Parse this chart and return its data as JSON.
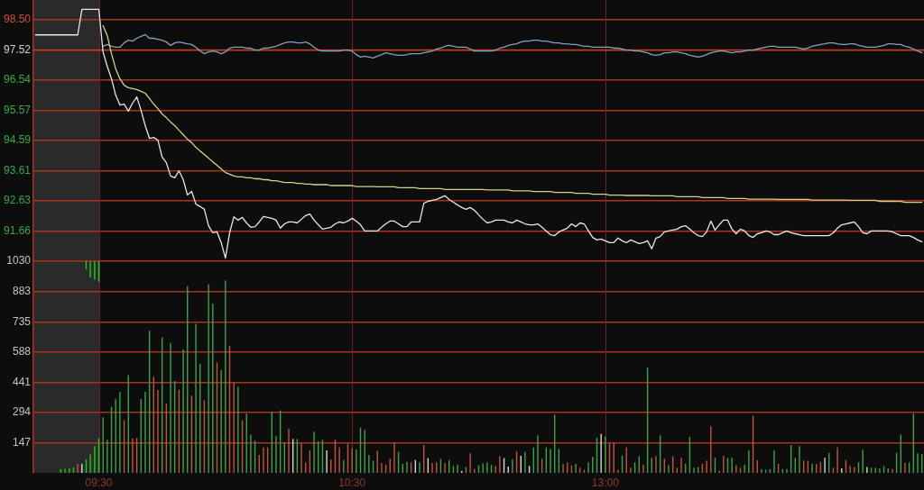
{
  "chart_data": [
    {
      "type": "line",
      "categories": [
        null,
        null,
        null,
        null,
        null,
        null,
        null,
        null,
        null,
        null,
        null,
        null,
        null,
        null,
        null,
        null,
        null,
        null,
        null,
        null,
        null,
        null,
        null,
        null,
        null,
        null,
        null,
        null,
        null,
        null,
        null,
        null,
        null,
        null,
        null,
        null,
        null,
        null,
        null,
        null,
        null,
        null,
        null,
        null,
        null,
        null,
        null,
        null,
        null,
        null,
        null,
        null,
        null,
        null,
        null,
        null,
        null,
        null,
        null,
        null,
        null,
        null,
        null,
        null,
        null,
        null,
        null,
        null,
        null,
        null,
        null,
        null,
        null,
        null,
        null,
        null,
        null,
        null,
        null,
        null,
        null,
        null,
        null,
        null,
        null,
        null,
        null,
        null,
        null,
        null,
        null,
        null,
        null,
        null,
        null,
        null,
        null,
        null,
        null,
        null,
        null,
        null,
        null,
        null,
        null,
        null,
        null,
        null,
        null,
        null,
        null,
        null,
        null,
        null,
        null,
        null,
        null,
        null,
        null,
        null,
        null,
        null,
        null,
        null,
        null,
        null,
        null,
        null,
        null,
        null,
        null,
        null,
        null,
        null,
        null,
        null,
        null,
        null,
        null,
        null,
        null,
        null,
        null,
        null,
        null,
        null,
        null,
        null,
        null,
        null,
        null,
        null,
        null,
        null,
        null,
        null,
        null,
        null,
        null,
        null,
        null,
        null,
        null,
        null,
        null,
        null,
        null,
        null,
        null,
        null,
        null,
        null,
        null,
        null,
        null,
        null,
        null,
        null,
        null,
        null,
        null,
        null,
        null,
        null,
        null,
        null,
        null,
        null,
        null,
        null,
        null,
        null,
        null,
        null,
        null,
        null,
        null,
        null,
        null,
        null,
        null,
        null,
        null,
        null,
        null,
        null,
        null,
        null,
        null,
        null,
        null
      ],
      "series": [
        {
          "color": "#e8e8e8",
          "values": [
            98.01,
            98.01,
            98.01,
            98.01,
            98.01,
            98.01,
            98.01,
            98.01,
            98.01,
            98.01,
            98.01,
            98.84,
            98.84,
            98.84,
            98.84,
            98.84,
            97.46,
            96.99,
            96.59,
            96.06,
            95.74,
            95.77,
            95.54,
            95.8,
            96.0,
            95.57,
            95.07,
            94.66,
            94.69,
            94.6,
            94.05,
            93.87,
            93.44,
            93.38,
            93.61,
            93.32,
            92.83,
            92.94,
            92.53,
            92.45,
            92.36,
            91.83,
            91.6,
            91.63,
            91.28,
            90.78,
            91.6,
            92.12,
            92.01,
            92.1,
            91.92,
            91.78,
            91.8,
            91.95,
            92.13,
            92.1,
            92.07,
            92.01,
            91.75,
            91.89,
            91.95,
            91.95,
            91.92,
            92.04,
            92.16,
            92.21,
            92.01,
            91.86,
            91.72,
            91.75,
            91.78,
            91.89,
            91.95,
            91.92,
            91.98,
            92.07,
            91.98,
            91.86,
            91.66,
            91.66,
            91.66,
            91.66,
            91.78,
            91.89,
            91.98,
            91.98,
            91.89,
            91.8,
            91.8,
            91.95,
            91.95,
            91.95,
            92.56,
            92.62,
            92.65,
            92.68,
            92.74,
            92.8,
            92.68,
            92.59,
            92.5,
            92.42,
            92.36,
            92.42,
            92.33,
            92.18,
            92.04,
            91.92,
            91.95,
            92.01,
            92.01,
            92.01,
            91.95,
            91.92,
            92.01,
            91.95,
            91.89,
            91.86,
            91.86,
            91.89,
            91.78,
            91.66,
            91.54,
            91.51,
            91.63,
            91.69,
            91.75,
            91.89,
            91.8,
            91.92,
            91.89,
            91.66,
            91.45,
            91.37,
            91.4,
            91.34,
            91.28,
            91.28,
            91.43,
            91.34,
            91.28,
            91.37,
            91.31,
            91.25,
            91.28,
            91.34,
            91.08,
            91.43,
            91.48,
            91.63,
            91.66,
            91.69,
            91.72,
            91.8,
            91.83,
            91.72,
            91.6,
            91.51,
            91.48,
            91.63,
            91.98,
            91.69,
            91.86,
            92.01,
            92.01,
            91.72,
            91.57,
            91.72,
            91.66,
            91.51,
            91.45,
            91.57,
            91.6,
            91.66,
            91.63,
            91.54,
            91.54,
            91.6,
            91.66,
            91.6,
            91.57,
            91.54,
            91.51,
            91.51,
            91.51,
            91.51,
            91.51,
            91.51,
            91.51,
            91.6,
            91.75,
            91.86,
            91.89,
            91.92,
            91.95,
            91.8,
            91.6,
            91.57,
            91.66,
            91.66,
            91.66,
            91.66,
            91.66,
            91.63,
            91.57,
            91.51,
            91.51,
            91.51,
            91.45,
            91.37,
            91.31
          ]
        },
        {
          "color": "#d8d08a",
          "values": [
            null,
            null,
            null,
            null,
            null,
            null,
            null,
            null,
            null,
            null,
            null,
            null,
            null,
            null,
            null,
            null,
            98.31,
            97.99,
            97.4,
            96.91,
            96.59,
            96.38,
            96.3,
            96.27,
            96.24,
            96.18,
            96.12,
            95.95,
            95.77,
            95.62,
            95.45,
            95.33,
            95.19,
            95.07,
            94.92,
            94.78,
            94.63,
            94.52,
            94.37,
            94.25,
            94.14,
            94.02,
            93.9,
            93.79,
            93.67,
            93.55,
            93.5,
            93.44,
            93.41,
            93.41,
            93.38,
            93.38,
            93.35,
            93.35,
            93.32,
            93.32,
            93.29,
            93.29,
            93.26,
            93.23,
            93.23,
            93.23,
            93.2,
            93.2,
            93.18,
            93.18,
            93.16,
            93.16,
            93.16,
            93.16,
            93.13,
            93.13,
            93.13,
            93.13,
            93.13,
            93.13,
            93.1,
            93.1,
            93.1,
            93.1,
            93.1,
            93.09,
            93.09,
            93.09,
            93.09,
            93.09,
            93.06,
            93.06,
            93.06,
            93.06,
            93.06,
            93.03,
            93.03,
            93.03,
            93.03,
            93.03,
            93.03,
            93.0,
            93.0,
            93.0,
            93.0,
            93.0,
            93.0,
            93.0,
            93.0,
            93.0,
            93.0,
            92.99,
            92.99,
            92.99,
            92.99,
            92.99,
            92.99,
            92.96,
            92.96,
            92.96,
            92.96,
            92.96,
            92.94,
            92.94,
            92.94,
            92.94,
            92.94,
            92.91,
            92.91,
            92.91,
            92.91,
            92.91,
            92.88,
            92.88,
            92.88,
            92.88,
            92.85,
            92.85,
            92.85,
            92.85,
            92.82,
            92.82,
            92.82,
            92.82,
            92.81,
            92.81,
            92.81,
            92.81,
            92.81,
            92.81,
            92.8,
            92.8,
            92.8,
            92.8,
            92.8,
            92.8,
            92.77,
            92.77,
            92.77,
            92.77,
            92.77,
            92.77,
            92.74,
            92.74,
            92.74,
            92.74,
            92.74,
            92.74,
            92.71,
            92.71,
            92.71,
            92.71,
            92.71,
            92.69,
            92.69,
            92.69,
            92.69,
            92.69,
            92.69,
            92.69,
            92.68,
            92.68,
            92.68,
            92.68,
            92.68,
            92.68,
            92.68,
            92.68,
            92.66,
            92.66,
            92.66,
            92.66,
            92.66,
            92.66,
            92.66,
            92.66,
            92.66,
            92.65,
            92.65,
            92.65,
            92.65,
            92.65,
            92.65,
            92.65,
            92.62,
            92.62,
            92.62,
            92.62,
            92.62,
            92.62,
            92.59,
            92.59,
            92.59,
            92.59,
            92.59
          ]
        },
        {
          "color": "#7fa3bf",
          "values": [
            null,
            null,
            null,
            null,
            null,
            null,
            null,
            null,
            null,
            null,
            null,
            null,
            null,
            null,
            null,
            null,
            97.64,
            97.7,
            97.64,
            97.61,
            97.61,
            97.75,
            97.84,
            97.81,
            97.9,
            97.96,
            98.02,
            97.9,
            97.9,
            97.87,
            97.84,
            97.78,
            97.67,
            97.75,
            97.78,
            97.75,
            97.72,
            97.7,
            97.61,
            97.49,
            97.4,
            97.46,
            97.49,
            97.46,
            97.4,
            97.46,
            97.58,
            97.61,
            97.61,
            97.61,
            97.58,
            97.58,
            97.52,
            97.52,
            97.58,
            97.58,
            97.61,
            97.64,
            97.7,
            97.75,
            97.78,
            97.78,
            97.75,
            97.75,
            97.78,
            97.72,
            97.61,
            97.52,
            97.49,
            97.49,
            97.49,
            97.49,
            97.49,
            97.52,
            97.52,
            97.49,
            97.37,
            97.29,
            97.32,
            97.29,
            97.26,
            97.32,
            97.37,
            97.43,
            97.4,
            97.37,
            97.35,
            97.35,
            97.37,
            97.4,
            97.4,
            97.4,
            97.43,
            97.46,
            97.49,
            97.55,
            97.58,
            97.64,
            97.67,
            97.64,
            97.61,
            97.61,
            97.61,
            97.55,
            97.49,
            97.49,
            97.49,
            97.49,
            97.49,
            97.52,
            97.58,
            97.61,
            97.67,
            97.7,
            97.72,
            97.78,
            97.81,
            97.81,
            97.84,
            97.84,
            97.81,
            97.81,
            97.78,
            97.75,
            97.75,
            97.72,
            97.72,
            97.7,
            97.7,
            97.67,
            97.64,
            97.64,
            97.61,
            97.61,
            97.61,
            97.61,
            97.61,
            97.58,
            97.58,
            97.55,
            97.52,
            97.52,
            97.49,
            97.49,
            97.46,
            97.43,
            97.37,
            97.35,
            97.37,
            97.43,
            97.43,
            97.46,
            97.46,
            97.43,
            97.4,
            97.35,
            97.32,
            97.29,
            97.32,
            97.37,
            97.43,
            97.46,
            97.49,
            97.49,
            97.46,
            97.43,
            97.46,
            97.46,
            97.49,
            97.52,
            97.52,
            97.55,
            97.58,
            97.61,
            97.64,
            97.64,
            97.61,
            97.61,
            97.61,
            97.61,
            97.61,
            97.58,
            97.55,
            97.58,
            97.64,
            97.67,
            97.7,
            97.72,
            97.75,
            97.75,
            97.72,
            97.7,
            97.7,
            97.72,
            97.72,
            97.67,
            97.64,
            97.61,
            97.61,
            97.61,
            97.64,
            97.67,
            97.72,
            97.72,
            97.7,
            97.7,
            97.64,
            97.61,
            97.55,
            97.49,
            97.43
          ]
        }
      ],
      "ylim": [
        90.68,
        99.14
      ],
      "yticks": [
        91.66,
        92.63,
        93.61,
        94.59,
        95.57,
        96.54,
        97.52,
        {
          "value": 98.5,
          "label": "98.50"
        }
      ],
      "grid": true,
      "tick_labels": "y",
      "ref_lines": [
        {
          "axis": "y",
          "value": 97.52,
          "color": "#c03c22"
        }
      ]
    },
    {
      "type": "bar",
      "categories": [
        null,
        null,
        null,
        null,
        null,
        null,
        null,
        null,
        null,
        null,
        null,
        null,
        null,
        null,
        null,
        "09:30",
        null,
        null,
        null,
        null,
        null,
        null,
        null,
        null,
        null,
        null,
        null,
        null,
        null,
        null,
        null,
        null,
        null,
        null,
        null,
        null,
        null,
        null,
        null,
        null,
        null,
        null,
        null,
        null,
        null,
        null,
        null,
        null,
        null,
        null,
        null,
        null,
        null,
        null,
        null,
        null,
        null,
        null,
        null,
        null,
        null,
        null,
        null,
        null,
        null,
        null,
        null,
        null,
        null,
        null,
        null,
        null,
        null,
        null,
        null,
        "10:30",
        null,
        null,
        null,
        null,
        null,
        null,
        null,
        null,
        null,
        null,
        null,
        null,
        null,
        null,
        null,
        null,
        null,
        null,
        null,
        null,
        null,
        null,
        null,
        null,
        null,
        null,
        null,
        null,
        null,
        null,
        null,
        null,
        null,
        null,
        null,
        null,
        null,
        null,
        null,
        null,
        null,
        null,
        null,
        null,
        null,
        null,
        null,
        null,
        null,
        null,
        null,
        null,
        null,
        null,
        null,
        null,
        null,
        null,
        null,
        "13:00",
        null,
        null,
        null,
        null,
        null,
        null,
        null,
        null,
        null,
        null,
        null,
        null,
        null,
        null,
        null,
        null,
        null,
        null,
        null,
        null,
        null,
        null,
        null,
        null,
        null,
        null,
        null,
        null,
        null,
        null,
        null,
        null,
        null,
        null,
        null,
        null,
        null,
        null,
        null,
        null,
        null,
        null,
        null,
        null,
        null,
        null,
        null,
        null,
        null,
        null,
        null,
        null,
        null,
        null,
        null,
        null,
        null,
        null,
        null,
        null,
        null,
        null,
        null,
        null,
        null,
        null,
        null,
        null,
        null,
        null,
        null,
        null,
        null,
        null,
        null
      ],
      "series": [
        {
          "values": [
            null,
            null,
            null,
            null,
            null,
            null,
            18,
            20,
            22,
            26,
            44,
            44,
            66,
            90,
            130,
            168,
            271,
            161,
            322,
            359,
            395,
            256,
            476,
            168,
            170,
            359,
            395,
            692,
            468,
            403,
            659,
            337,
            632,
            447,
            405,
            600,
            908,
            376,
            725,
            530,
            354,
            918,
            824,
            537,
            501,
            937,
            619,
            439,
            420,
            256,
            288,
            186,
            157,
            88,
            124,
            124,
            297,
            179,
            304,
            148,
            215,
            165,
            165,
            145,
            51,
            110,
            200,
            154,
            161,
            110,
            66,
            161,
            124,
            63,
            142,
            122,
            113,
            220,
            209,
            88,
            59,
            107,
            48,
            40,
            69,
            146,
            102,
            44,
            54,
            51,
            63,
            51,
            136,
            72,
            48,
            51,
            69,
            48,
            63,
            34,
            40,
            10,
            28,
            95,
            19,
            37,
            47,
            51,
            40,
            34,
            81,
            72,
            31,
            66,
            104,
            83,
            102,
            34,
            124,
            183,
            69,
            124,
            117,
            283,
            117,
            44,
            51,
            37,
            44,
            25,
            15,
            51,
            78,
            171,
            190,
            176,
            146,
            146,
            15,
            83,
            124,
            25,
            51,
            81,
            40,
            512,
            73,
            81,
            183,
            69,
            37,
            81,
            25,
            73,
            44,
            176,
            25,
            29,
            44,
            59,
            227,
            73,
            10,
            83,
            73,
            73,
            37,
            25,
            40,
            110,
            278,
            63,
            19,
            15,
            19,
            110,
            44,
            19,
            19,
            136,
            73,
            130,
            59,
            59,
            44,
            44,
            54,
            73,
            98,
            25,
            124,
            22,
            63,
            34,
            29,
            51,
            113,
            29,
            25,
            25,
            22,
            34,
            22,
            19,
            98,
            186,
            48,
            51,
            288,
            95,
            92
          ],
          "colors": [
            null,
            null,
            null,
            null,
            null,
            null,
            "#1ec81e",
            "#1ec81e",
            "#1ec81e",
            "#1ec81e",
            "#c4543c",
            "#d8d8d8",
            "#1ec81e",
            "#1ec81e",
            "#1ec81e",
            "#1ec81e",
            "#3ba34b",
            "#3ba34b",
            "#3ba34b",
            "#3ba34b",
            "#3ba34b",
            "#c4543c",
            "#3ba34b",
            "#c4543c",
            "#c4543c",
            "#3ba34b",
            "#3ba34b",
            "#3ba34b",
            "#c4543c",
            "#c4543c",
            "#3ba34b",
            "#c4543c",
            "#3ba34b",
            "#3ba34b",
            "#c4543c",
            "#3ba34b",
            "#3ba34b",
            "#c4543c",
            "#3ba34b",
            "#3ba34b",
            "#c4543c",
            "#3ba34b",
            "#3ba34b",
            "#c4543c",
            "#3ba34b",
            "#3ba34b",
            "#c4543c",
            "#c4543c",
            "#3ba34b",
            "#c4543c",
            "#3ba34b",
            "#3ba34b",
            "#3ba34b",
            "#c4543c",
            "#c4543c",
            "#c4543c",
            "#3ba34b",
            "#3ba34b",
            "#3ba34b",
            "#3ba34b",
            "#c4543c",
            "#d8d8d8",
            "#3ba34b",
            "#c4543c",
            "#c4543c",
            "#c4543c",
            "#3ba34b",
            "#3ba34b",
            "#3ba34b",
            "#d8d8d8",
            "#c4543c",
            "#c4543c",
            "#c4543c",
            "#3ba34b",
            "#c4543c",
            "#c4543c",
            "#3ba34b",
            "#3ba34b",
            "#3ba34b",
            "#3ba34b",
            "#3ba34b",
            "#c4543c",
            "#c4543c",
            "#c4543c",
            "#c4543c",
            "#c4543c",
            "#3ba34b",
            "#3ba34b",
            "#3ba34b",
            "#c4543c",
            "#d8d8d8",
            "#3ba34b",
            "#c4543c",
            "#d8d8d8",
            "#c4543c",
            "#c4543c",
            "#3ba34b",
            "#c4543c",
            "#3ba34b",
            "#3ba34b",
            "#3ba34b",
            "#d8d8d8",
            "#3ba34b",
            "#c4543c",
            "#c4543c",
            "#3ba34b",
            "#3ba34b",
            "#3ba34b",
            "#3ba34b",
            "#c4543c",
            "#c4543c",
            "#d8d8d8",
            "#d8d8d8",
            "#3ba34b",
            "#c4543c",
            "#d8d8d8",
            "#3ba34b",
            "#d8d8d8",
            "#3ba34b",
            "#3ba34b",
            "#c4543c",
            "#3ba34b",
            "#3ba34b",
            "#3ba34b",
            "#3ba34b",
            "#c4543c",
            "#c4543c",
            "#c4543c",
            "#3ba34b",
            "#c4543c",
            "#c4543c",
            "#3ba34b",
            "#3ba34b",
            "#3ba34b",
            "#d8d8d8",
            "#3ba34b",
            "#c4543c",
            "#c4543c",
            "#c4543c",
            "#3ba34b",
            "#c4543c",
            "#c4543c",
            "#3ba34b",
            "#3ba34b",
            "#c4543c",
            "#3ba34b",
            "#3ba34b",
            "#c4543c",
            "#3ba34b",
            "#c4543c",
            "#3ba34b",
            "#c4543c",
            "#c4543c",
            "#c4543c",
            "#3ba34b",
            "#3ba34b",
            "#3ba34b",
            "#3ba34b",
            "#c4543c",
            "#c4543c",
            "#c4543c",
            "#3ba34b",
            "#c4543c",
            "#c4543c",
            "#3ba34b",
            "#3ba34b",
            "#c4543c",
            "#c4543c",
            "#3ba34b",
            "#3ba34b",
            "#c4543c",
            "#c4543c",
            "#3ba34b",
            "#3ba34b",
            "#3ba34b",
            "#3ba34b",
            "#c4543c",
            "#3ba34b",
            "#3ba34b",
            "#3ba34b",
            "#3ba34b",
            "#3ba34b",
            "#c4543c",
            "#c4543c",
            "#3ba34b",
            "#c4543c",
            "#c4543c",
            "#d8d8d8",
            "#3ba34b",
            "#c4543c",
            "#c4543c",
            "#d8d8d8",
            "#c4543c",
            "#c4543c",
            "#c4543c",
            "#3ba34b",
            "#3ba34b",
            "#d8d8d8",
            "#3ba34b",
            "#3ba34b",
            "#3ba34b",
            "#3ba34b",
            "#3ba34b",
            "#c4543c",
            "#3ba34b",
            "#3ba34b",
            "#c4543c",
            "#3ba34b",
            "#3ba34b",
            "#3ba34b",
            "#3ba34b"
          ]
        },
        {
          "color": "#1ec81e",
          "values": [
            null,
            null,
            null,
            null,
            null,
            null,
            null,
            null,
            null,
            null,
            null,
            null,
            -40,
            -80,
            -90,
            -100,
            null,
            null,
            null,
            null,
            null,
            null,
            null,
            null,
            null,
            null,
            null,
            null,
            null,
            null,
            null,
            null,
            null,
            null,
            null,
            null,
            null,
            null,
            null,
            null,
            null,
            null,
            null,
            null,
            null,
            null,
            null,
            null,
            null,
            null,
            null,
            null,
            null,
            null,
            null,
            null,
            null,
            null,
            null,
            null,
            null,
            null,
            null,
            null,
            null,
            null,
            null,
            null,
            null,
            null,
            null,
            null,
            null,
            null,
            null,
            null,
            null,
            null,
            null,
            null,
            null,
            null,
            null,
            null,
            null,
            null,
            null,
            null,
            null,
            null,
            null,
            null,
            null,
            null,
            null,
            null,
            null,
            null,
            null,
            null,
            null,
            null,
            null,
            null,
            null,
            null,
            null,
            null,
            null,
            null,
            null,
            null,
            null,
            null,
            null,
            null,
            null,
            null,
            null,
            null,
            null,
            null,
            null,
            null,
            null,
            null,
            null,
            null,
            null,
            null,
            null,
            null,
            null,
            null,
            null,
            null,
            null,
            null,
            null,
            null,
            null,
            null,
            null,
            null,
            null,
            null,
            null,
            null,
            null,
            null,
            null,
            null,
            null,
            null,
            null,
            null,
            null,
            null,
            null,
            null,
            null,
            null,
            null,
            null,
            null,
            null,
            null,
            null,
            null,
            null,
            null,
            null,
            null,
            null,
            null,
            null,
            null,
            null,
            null,
            null,
            null,
            null,
            null,
            null,
            null,
            null,
            null,
            null,
            null,
            null,
            null,
            null,
            null,
            null,
            null,
            null,
            null,
            null,
            null,
            null,
            null,
            null,
            null,
            null,
            null,
            null,
            null,
            null,
            null,
            null,
            null
          ],
          "base": [
            null,
            null,
            null,
            null,
            null,
            null,
            null,
            null,
            null,
            null,
            null,
            null,
            1030,
            1030,
            1030,
            1030,
            null,
            null,
            null,
            null,
            null,
            null,
            null,
            null,
            null,
            null,
            null,
            null,
            null,
            null,
            null,
            null,
            null,
            null,
            null,
            null,
            null,
            null,
            null,
            null,
            null,
            null,
            null,
            null,
            null,
            null,
            null,
            null,
            null,
            null,
            null,
            null,
            null,
            null,
            null,
            null,
            null,
            null,
            null,
            null,
            null,
            null,
            null,
            null,
            null,
            null,
            null,
            null,
            null,
            null,
            null,
            null,
            null,
            null,
            null,
            null,
            null,
            null,
            null,
            null,
            null,
            null,
            null,
            null,
            null,
            null,
            null,
            null,
            null,
            null,
            null,
            null,
            null,
            null,
            null,
            null,
            null,
            null,
            null,
            null,
            null,
            null,
            null,
            null,
            null,
            null,
            null,
            null,
            null,
            null,
            null,
            null,
            null,
            null,
            null,
            null,
            null,
            null,
            null,
            null,
            null,
            null,
            null,
            null,
            null,
            null,
            null,
            null,
            null,
            null,
            null,
            null,
            null,
            null,
            null,
            null,
            null,
            null,
            null,
            null,
            null,
            null,
            null,
            null,
            null,
            null,
            null,
            null,
            null,
            null,
            null,
            null,
            null,
            null,
            null,
            null,
            null,
            null,
            null,
            null,
            null,
            null,
            null,
            null,
            null,
            null,
            null,
            null,
            null,
            null,
            null,
            null,
            null,
            null,
            null,
            null,
            null,
            null,
            null,
            null,
            null,
            null,
            null,
            null,
            null,
            null,
            null,
            null,
            null,
            null,
            null,
            null,
            null,
            null,
            null,
            null,
            null,
            null,
            null,
            null,
            null,
            null,
            null,
            null,
            null,
            null,
            null,
            null,
            null,
            null,
            null
          ]
        }
      ],
      "ylim": [
        0,
        1030
      ],
      "yticks": [
        147,
        294,
        441,
        588,
        735,
        883,
        1030
      ],
      "grid": true
    }
  ]
}
